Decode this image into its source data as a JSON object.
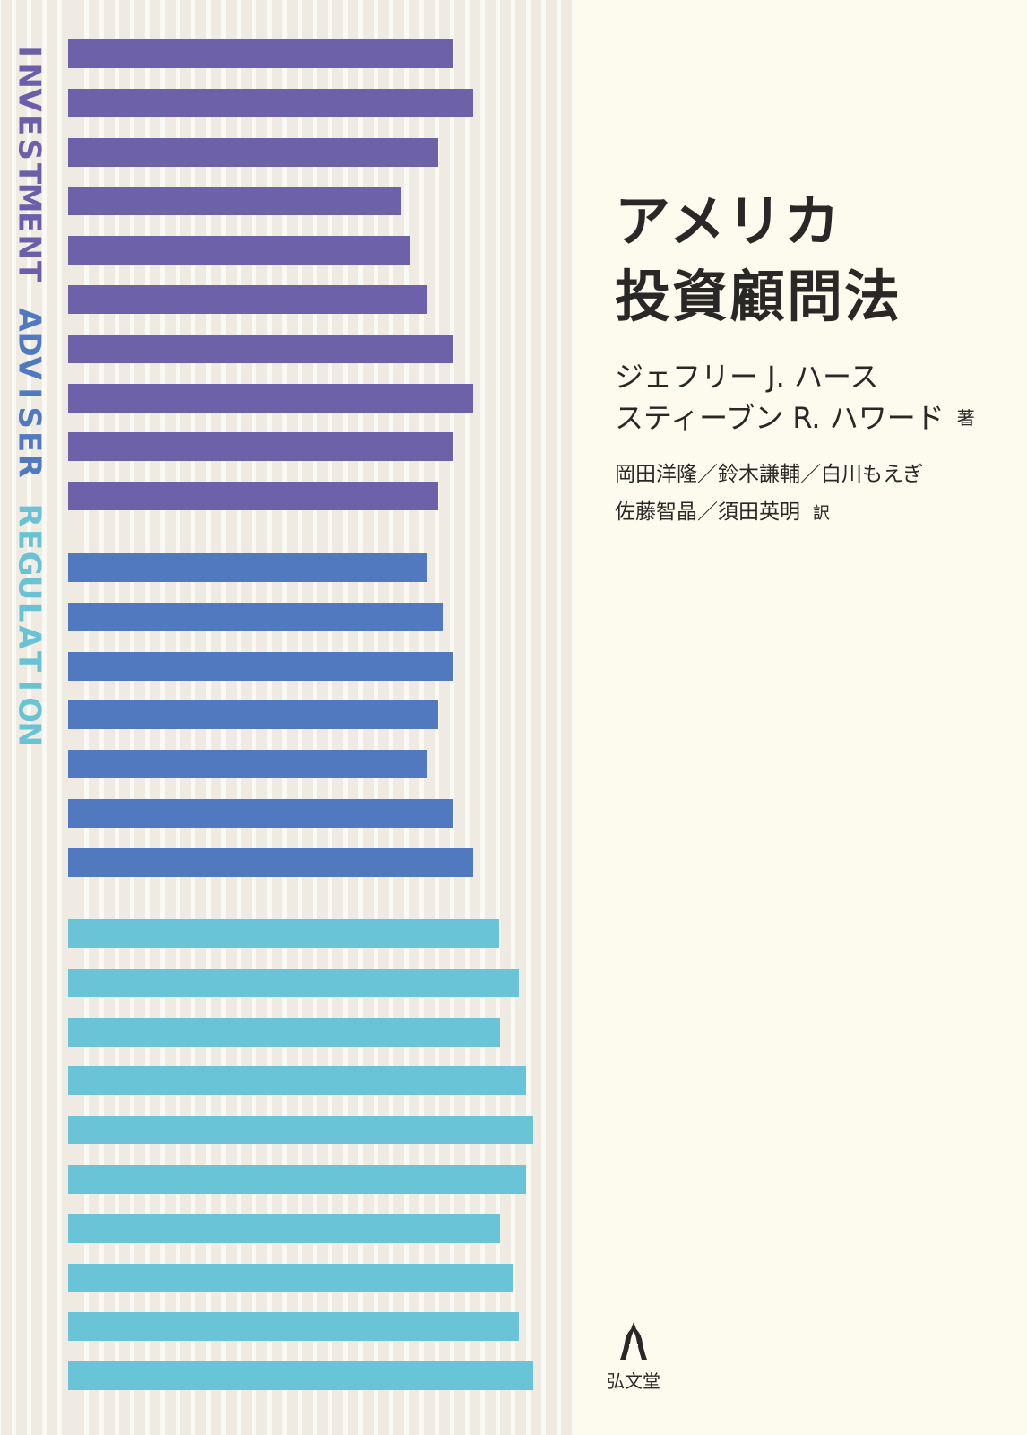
{
  "cover": {
    "title_lines": [
      "アメリカ",
      "投資顧問法"
    ],
    "authors": {
      "names": [
        "ジェフリー J. ハース",
        "スティーブン R. ハワード"
      ],
      "role": "著"
    },
    "translators": {
      "lines": [
        "岡田洋隆／鈴木謙輔／白川もえぎ",
        "佐藤智晶／須田英明"
      ],
      "role": "訳"
    },
    "publisher": {
      "name": "弘文堂",
      "logo_icon": "publisher-logo-icon"
    },
    "spine_text": {
      "words": [
        {
          "text": "INVESTMENT",
          "color": "#6a5fa8"
        },
        {
          "text": "ADVISER",
          "color": "#4f79c0"
        },
        {
          "text": "REGULATION",
          "color": "#69c3d5"
        }
      ]
    },
    "colors": {
      "background": "#fdfbee",
      "stripe_panel": "#efebe3",
      "purple": "#6d61a9",
      "blue": "#5079bf",
      "cyan": "#6ac4d7",
      "text": "#2a2727"
    },
    "bar_groups": [
      {
        "color": "#6d61a9",
        "lengths": [
          0.82,
          0.865,
          0.79,
          0.71,
          0.73,
          0.765,
          0.82,
          0.865,
          0.82,
          0.79
        ]
      },
      {
        "color": "#5079bf",
        "lengths": [
          0.765,
          0.8,
          0.82,
          0.79,
          0.765,
          0.82,
          0.865
        ]
      },
      {
        "color": "#6ac4d7",
        "lengths": [
          0.92,
          0.962,
          0.922,
          0.978,
          0.993,
          0.978,
          0.922,
          0.95,
          0.962,
          0.993
        ]
      }
    ]
  }
}
